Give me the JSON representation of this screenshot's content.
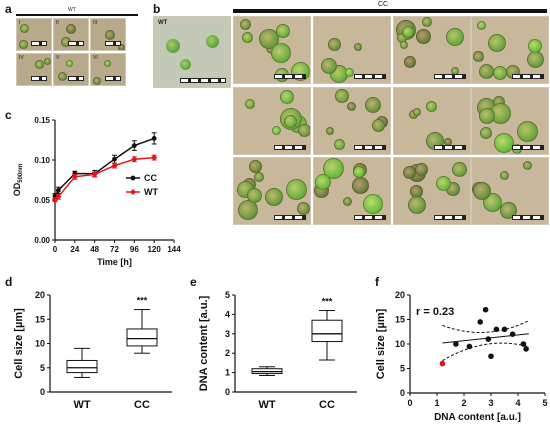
{
  "panels": {
    "a": {
      "label": "a",
      "header": "WT",
      "tile_labels": [
        "I",
        "II",
        "III",
        "IV",
        "V",
        "VI"
      ]
    },
    "b": {
      "label": "b",
      "wt_label": "WT",
      "cc_header": "CC"
    },
    "c": {
      "label": "c"
    },
    "d": {
      "label": "d"
    },
    "e": {
      "label": "e"
    },
    "f": {
      "label": "f"
    }
  },
  "colors": {
    "wt_red": "#e3141b",
    "cc_black": "#111111",
    "cell_green": "#4f8f2a"
  },
  "chart_data": [
    {
      "id": "c",
      "type": "line",
      "xlabel": "Time [h]",
      "ylabel": "OD",
      "ylabel_sub": "500nm",
      "xticks": [
        0,
        24,
        48,
        72,
        96,
        120,
        144
      ],
      "yticks": [
        "0.00",
        "0.05",
        "0.10",
        "0.15"
      ],
      "xlim": [
        0,
        144
      ],
      "ylim": [
        0,
        0.15
      ],
      "x": [
        0,
        4,
        24,
        48,
        72,
        96,
        120
      ],
      "series": [
        {
          "name": "CC",
          "values": [
            0.055,
            0.062,
            0.083,
            0.083,
            0.101,
            0.118,
            0.127
          ],
          "err": [
            0.003,
            0.004,
            0.003,
            0.004,
            0.005,
            0.006,
            0.007
          ]
        },
        {
          "name": "WT",
          "values": [
            0.05,
            0.054,
            0.079,
            0.082,
            0.093,
            0.101,
            0.103
          ],
          "err": [
            0.002,
            0.003,
            0.003,
            0.003,
            0.003,
            0.003,
            0.003
          ]
        }
      ]
    },
    {
      "id": "d",
      "type": "box",
      "ylabel": "Cell size [µm]",
      "yticks": [
        0,
        5,
        10,
        15,
        20
      ],
      "ylim": [
        0,
        20
      ],
      "categories": [
        "WT",
        "CC"
      ],
      "boxes": [
        {
          "min": 3,
          "q1": 4,
          "median": 5,
          "q3": 6.5,
          "max": 9
        },
        {
          "min": 8,
          "q1": 9.5,
          "median": 11,
          "q3": 13,
          "max": 17
        }
      ],
      "significance": "***"
    },
    {
      "id": "e",
      "type": "box",
      "ylabel": "DNA content [a.u.]",
      "yticks": [
        0,
        1,
        2,
        3,
        4,
        5
      ],
      "ylim": [
        0,
        5
      ],
      "categories": [
        "WT",
        "CC"
      ],
      "boxes": [
        {
          "min": 0.85,
          "q1": 0.95,
          "median": 1.05,
          "q3": 1.2,
          "max": 1.3
        },
        {
          "min": 1.65,
          "q1": 2.6,
          "median": 3.0,
          "q3": 3.7,
          "max": 4.2
        }
      ],
      "significance": "***"
    },
    {
      "id": "f",
      "type": "scatter",
      "xlabel": "DNA content [a.u.]",
      "ylabel": "Cell size [µm]",
      "annotation": "r = 0.23",
      "xticks": [
        0,
        1,
        2,
        3,
        4,
        5
      ],
      "yticks": [
        0,
        5,
        10,
        15,
        20
      ],
      "xlim": [
        0,
        5
      ],
      "ylim": [
        0,
        20
      ],
      "points": [
        [
          1.7,
          10
        ],
        [
          2.2,
          9.5
        ],
        [
          2.6,
          14.5
        ],
        [
          2.8,
          17
        ],
        [
          2.9,
          11
        ],
        [
          3.0,
          7.5
        ],
        [
          3.2,
          13
        ],
        [
          3.5,
          13
        ],
        [
          3.8,
          12
        ],
        [
          4.2,
          10
        ],
        [
          4.3,
          9
        ]
      ],
      "highlight": [
        1.2,
        6
      ]
    }
  ]
}
